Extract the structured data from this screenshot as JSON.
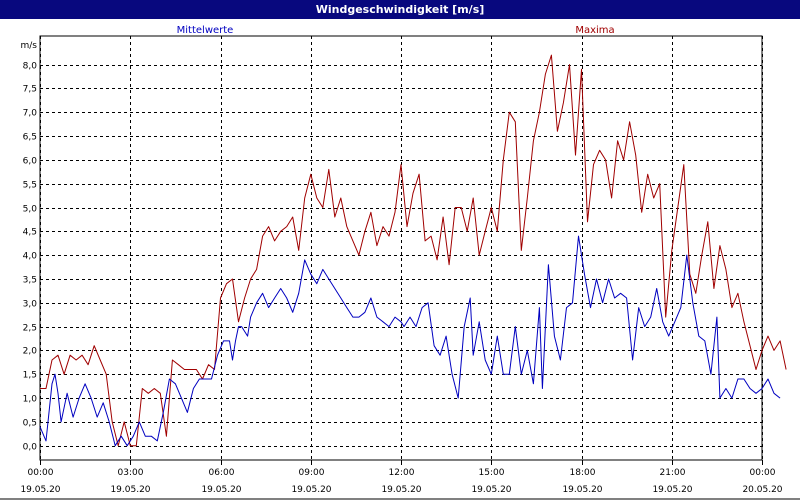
{
  "window": {
    "title": "Windgeschwindigkeit [m/s]"
  },
  "colors": {
    "titlebar_bg": "#08087e",
    "mean": "#0000c0",
    "max": "#a00000"
  },
  "chart_data": {
    "type": "line",
    "title": "Windgeschwindigkeit [m/s]",
    "ylabel": "m/s",
    "ylim": [
      -0.3,
      8.6
    ],
    "yticks": [
      0.0,
      0.5,
      1.0,
      1.5,
      2.0,
      2.5,
      3.0,
      3.5,
      4.0,
      4.5,
      5.0,
      5.5,
      6.0,
      6.5,
      7.0,
      7.5,
      8.0
    ],
    "ytick_labels": [
      "0,0",
      "0,5",
      "1,0",
      "1,5",
      "2,0",
      "2,5",
      "3,0",
      "3,5",
      "4,0",
      "4,5",
      "5,0",
      "5,5",
      "6,0",
      "6,5",
      "7,0",
      "7,5",
      "8,0"
    ],
    "xlim": [
      0,
      24
    ],
    "xticks": [
      0,
      3,
      6,
      9,
      12,
      15,
      18,
      21,
      24
    ],
    "xtick_labels": [
      [
        "00:00",
        "19.05.20"
      ],
      [
        "03:00",
        "19.05.20"
      ],
      [
        "06:00",
        "19.05.20"
      ],
      [
        "09:00",
        "19.05.20"
      ],
      [
        "12:00",
        "19.05.20"
      ],
      [
        "15:00",
        "19.05.20"
      ],
      [
        "18:00",
        "19.05.20"
      ],
      [
        "21:00",
        "19.05.20"
      ],
      [
        "00:00",
        "20.05.20"
      ]
    ],
    "grid": true,
    "series": [
      {
        "name": "Mittelwerte",
        "color": "#0000c0",
        "points": [
          [
            0.0,
            0.4
          ],
          [
            0.2,
            0.1
          ],
          [
            0.4,
            1.3
          ],
          [
            0.5,
            1.5
          ],
          [
            0.6,
            1.1
          ],
          [
            0.7,
            0.5
          ],
          [
            0.9,
            1.1
          ],
          [
            1.1,
            0.6
          ],
          [
            1.3,
            1.0
          ],
          [
            1.5,
            1.3
          ],
          [
            1.7,
            1.0
          ],
          [
            1.9,
            0.6
          ],
          [
            2.1,
            0.9
          ],
          [
            2.3,
            0.5
          ],
          [
            2.5,
            0.0
          ],
          [
            2.7,
            0.2
          ],
          [
            2.9,
            0.0
          ],
          [
            3.1,
            0.2
          ],
          [
            3.3,
            0.5
          ],
          [
            3.5,
            0.2
          ],
          [
            3.7,
            0.2
          ],
          [
            3.9,
            0.1
          ],
          [
            4.1,
            0.7
          ],
          [
            4.3,
            1.4
          ],
          [
            4.5,
            1.3
          ],
          [
            4.7,
            1.0
          ],
          [
            4.9,
            0.7
          ],
          [
            5.1,
            1.2
          ],
          [
            5.3,
            1.4
          ],
          [
            5.5,
            1.4
          ],
          [
            5.7,
            1.4
          ],
          [
            5.9,
            1.9
          ],
          [
            6.1,
            2.2
          ],
          [
            6.3,
            2.2
          ],
          [
            6.4,
            1.8
          ],
          [
            6.5,
            2.2
          ],
          [
            6.6,
            2.5
          ],
          [
            6.7,
            2.5
          ],
          [
            6.9,
            2.3
          ],
          [
            7.0,
            2.7
          ],
          [
            7.2,
            3.0
          ],
          [
            7.4,
            3.2
          ],
          [
            7.6,
            2.9
          ],
          [
            7.8,
            3.1
          ],
          [
            8.0,
            3.3
          ],
          [
            8.2,
            3.1
          ],
          [
            8.4,
            2.8
          ],
          [
            8.6,
            3.2
          ],
          [
            8.8,
            3.9
          ],
          [
            9.0,
            3.6
          ],
          [
            9.2,
            3.4
          ],
          [
            9.4,
            3.7
          ],
          [
            9.6,
            3.5
          ],
          [
            9.8,
            3.3
          ],
          [
            10.0,
            3.1
          ],
          [
            10.2,
            2.9
          ],
          [
            10.4,
            2.7
          ],
          [
            10.6,
            2.7
          ],
          [
            10.8,
            2.8
          ],
          [
            11.0,
            3.1
          ],
          [
            11.2,
            2.7
          ],
          [
            11.4,
            2.6
          ],
          [
            11.6,
            2.5
          ],
          [
            11.8,
            2.7
          ],
          [
            12.0,
            2.6
          ],
          [
            12.1,
            2.5
          ],
          [
            12.3,
            2.7
          ],
          [
            12.5,
            2.5
          ],
          [
            12.7,
            2.9
          ],
          [
            12.9,
            3.0
          ],
          [
            13.1,
            2.1
          ],
          [
            13.3,
            1.9
          ],
          [
            13.5,
            2.3
          ],
          [
            13.7,
            1.5
          ],
          [
            13.9,
            1.0
          ],
          [
            14.1,
            2.5
          ],
          [
            14.3,
            3.1
          ],
          [
            14.4,
            1.9
          ],
          [
            14.6,
            2.6
          ],
          [
            14.8,
            1.8
          ],
          [
            15.0,
            1.5
          ],
          [
            15.2,
            2.3
          ],
          [
            15.4,
            1.5
          ],
          [
            15.6,
            1.5
          ],
          [
            15.8,
            2.5
          ],
          [
            16.0,
            1.5
          ],
          [
            16.2,
            2.0
          ],
          [
            16.4,
            1.3
          ],
          [
            16.6,
            2.9
          ],
          [
            16.7,
            1.2
          ],
          [
            16.9,
            3.8
          ],
          [
            17.1,
            2.3
          ],
          [
            17.3,
            1.8
          ],
          [
            17.5,
            2.9
          ],
          [
            17.7,
            3.0
          ],
          [
            17.9,
            4.4
          ],
          [
            18.1,
            3.6
          ],
          [
            18.3,
            2.9
          ],
          [
            18.5,
            3.5
          ],
          [
            18.7,
            3.0
          ],
          [
            18.9,
            3.5
          ],
          [
            19.1,
            3.1
          ],
          [
            19.3,
            3.2
          ],
          [
            19.5,
            3.1
          ],
          [
            19.7,
            1.8
          ],
          [
            19.9,
            2.9
          ],
          [
            20.1,
            2.5
          ],
          [
            20.3,
            2.7
          ],
          [
            20.5,
            3.3
          ],
          [
            20.7,
            2.6
          ],
          [
            20.9,
            2.3
          ],
          [
            21.1,
            2.6
          ],
          [
            21.3,
            2.9
          ],
          [
            21.5,
            4.0
          ],
          [
            21.7,
            3.0
          ],
          [
            21.9,
            2.3
          ],
          [
            22.1,
            2.2
          ],
          [
            22.3,
            1.5
          ],
          [
            22.5,
            2.7
          ],
          [
            22.6,
            1.0
          ],
          [
            22.8,
            1.2
          ],
          [
            23.0,
            1.0
          ],
          [
            23.2,
            1.4
          ],
          [
            23.4,
            1.4
          ],
          [
            23.6,
            1.2
          ],
          [
            23.8,
            1.1
          ],
          [
            24.0,
            1.2
          ],
          [
            24.2,
            1.4
          ],
          [
            24.4,
            1.1
          ],
          [
            24.6,
            1.0
          ]
        ]
      },
      {
        "name": "Maxima",
        "color": "#a00000",
        "points": [
          [
            0.0,
            1.2
          ],
          [
            0.2,
            1.2
          ],
          [
            0.4,
            1.8
          ],
          [
            0.6,
            1.9
          ],
          [
            0.8,
            1.5
          ],
          [
            1.0,
            1.9
          ],
          [
            1.2,
            1.8
          ],
          [
            1.4,
            1.9
          ],
          [
            1.6,
            1.7
          ],
          [
            1.8,
            2.1
          ],
          [
            2.0,
            1.8
          ],
          [
            2.2,
            1.5
          ],
          [
            2.4,
            0.5
          ],
          [
            2.6,
            0.0
          ],
          [
            2.8,
            0.5
          ],
          [
            3.0,
            0.0
          ],
          [
            3.2,
            0.0
          ],
          [
            3.4,
            1.2
          ],
          [
            3.6,
            1.1
          ],
          [
            3.8,
            1.2
          ],
          [
            4.0,
            1.1
          ],
          [
            4.2,
            0.2
          ],
          [
            4.4,
            1.8
          ],
          [
            4.6,
            1.7
          ],
          [
            4.8,
            1.6
          ],
          [
            5.0,
            1.6
          ],
          [
            5.2,
            1.6
          ],
          [
            5.4,
            1.4
          ],
          [
            5.6,
            1.7
          ],
          [
            5.8,
            1.6
          ],
          [
            6.0,
            3.1
          ],
          [
            6.2,
            3.4
          ],
          [
            6.4,
            3.5
          ],
          [
            6.6,
            2.6
          ],
          [
            6.8,
            3.1
          ],
          [
            7.0,
            3.5
          ],
          [
            7.2,
            3.7
          ],
          [
            7.4,
            4.4
          ],
          [
            7.6,
            4.6
          ],
          [
            7.8,
            4.3
          ],
          [
            8.0,
            4.5
          ],
          [
            8.2,
            4.6
          ],
          [
            8.4,
            4.8
          ],
          [
            8.6,
            4.1
          ],
          [
            8.8,
            5.2
          ],
          [
            9.0,
            5.7
          ],
          [
            9.2,
            5.2
          ],
          [
            9.4,
            5.0
          ],
          [
            9.6,
            5.8
          ],
          [
            9.8,
            4.8
          ],
          [
            10.0,
            5.2
          ],
          [
            10.2,
            4.6
          ],
          [
            10.4,
            4.3
          ],
          [
            10.6,
            4.0
          ],
          [
            10.8,
            4.5
          ],
          [
            11.0,
            4.9
          ],
          [
            11.2,
            4.2
          ],
          [
            11.4,
            4.6
          ],
          [
            11.6,
            4.4
          ],
          [
            11.8,
            4.9
          ],
          [
            12.0,
            5.9
          ],
          [
            12.2,
            4.6
          ],
          [
            12.4,
            5.3
          ],
          [
            12.6,
            5.7
          ],
          [
            12.8,
            4.3
          ],
          [
            13.0,
            4.4
          ],
          [
            13.2,
            3.9
          ],
          [
            13.4,
            4.8
          ],
          [
            13.6,
            3.8
          ],
          [
            13.8,
            5.0
          ],
          [
            14.0,
            5.0
          ],
          [
            14.2,
            4.5
          ],
          [
            14.4,
            5.2
          ],
          [
            14.6,
            4.0
          ],
          [
            14.8,
            4.5
          ],
          [
            15.0,
            5.0
          ],
          [
            15.2,
            4.5
          ],
          [
            15.4,
            6.0
          ],
          [
            15.6,
            7.0
          ],
          [
            15.8,
            6.8
          ],
          [
            16.0,
            4.1
          ],
          [
            16.2,
            5.2
          ],
          [
            16.4,
            6.4
          ],
          [
            16.6,
            7.0
          ],
          [
            16.8,
            7.8
          ],
          [
            17.0,
            8.2
          ],
          [
            17.2,
            6.6
          ],
          [
            17.4,
            7.2
          ],
          [
            17.6,
            8.0
          ],
          [
            17.8,
            6.1
          ],
          [
            18.0,
            7.9
          ],
          [
            18.2,
            4.7
          ],
          [
            18.4,
            5.9
          ],
          [
            18.6,
            6.2
          ],
          [
            18.8,
            6.0
          ],
          [
            19.0,
            5.2
          ],
          [
            19.2,
            6.4
          ],
          [
            19.4,
            6.0
          ],
          [
            19.6,
            6.8
          ],
          [
            19.8,
            6.1
          ],
          [
            20.0,
            4.9
          ],
          [
            20.2,
            5.7
          ],
          [
            20.4,
            5.2
          ],
          [
            20.6,
            5.5
          ],
          [
            20.8,
            2.7
          ],
          [
            21.0,
            4.1
          ],
          [
            21.2,
            5.0
          ],
          [
            21.4,
            5.9
          ],
          [
            21.6,
            3.6
          ],
          [
            21.8,
            3.2
          ],
          [
            22.0,
            4.0
          ],
          [
            22.2,
            4.7
          ],
          [
            22.4,
            3.3
          ],
          [
            22.6,
            4.2
          ],
          [
            22.8,
            3.7
          ],
          [
            23.0,
            2.9
          ],
          [
            23.2,
            3.2
          ],
          [
            23.4,
            2.6
          ],
          [
            23.6,
            2.1
          ],
          [
            23.8,
            1.6
          ],
          [
            24.0,
            2.0
          ],
          [
            24.2,
            2.3
          ],
          [
            24.4,
            2.0
          ],
          [
            24.6,
            2.2
          ],
          [
            24.8,
            1.6
          ]
        ]
      }
    ]
  }
}
